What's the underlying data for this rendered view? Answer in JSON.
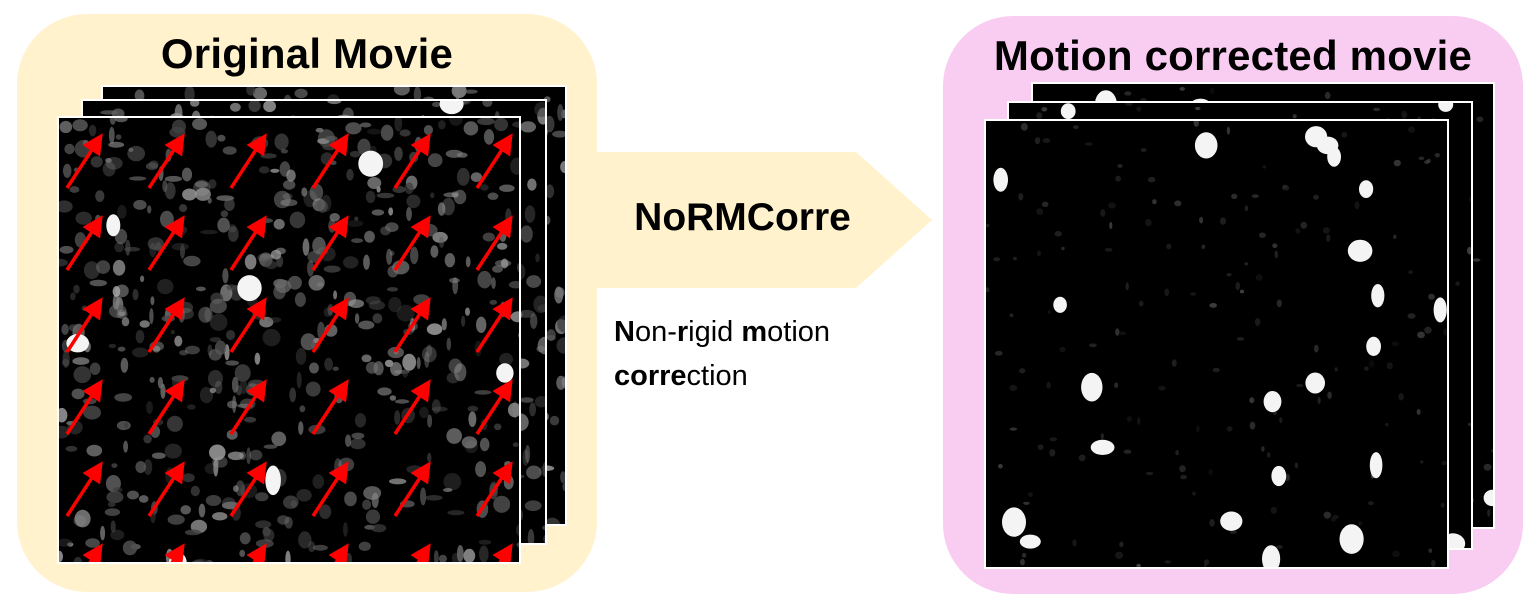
{
  "left_panel": {
    "title": "Original Movie",
    "background_color": "#FFF2CC"
  },
  "right_panel": {
    "title": "Motion corrected movie",
    "background_color": "#F9CCF2"
  },
  "process": {
    "name": "NoRMCorre",
    "arrow_color": "#FFF2CC",
    "description_segments": [
      {
        "text": "N",
        "bold": true
      },
      {
        "text": "on-",
        "bold": false
      },
      {
        "text": "r",
        "bold": true
      },
      {
        "text": "igid ",
        "bold": false
      },
      {
        "text": "m",
        "bold": true
      },
      {
        "text": "otion ",
        "bold": false
      },
      {
        "text": "corre",
        "bold": true
      },
      {
        "text": "ction",
        "bold": false
      }
    ]
  },
  "motion_vectors": {
    "color": "#FF0000",
    "direction": "up-right"
  }
}
